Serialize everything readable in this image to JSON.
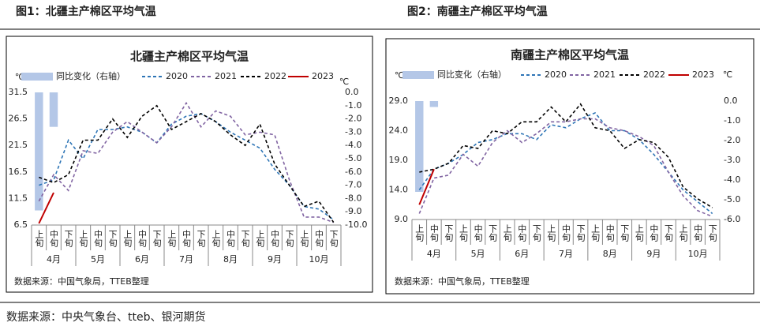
{
  "header": {
    "left": "图1：北疆主产棉区平均气温",
    "right": "图2：南疆主产棉区平均气温"
  },
  "footer": "数据来源：中央气象台、tteb、银河期货",
  "chart_data": [
    {
      "type": "line",
      "title": "北疆主产棉区平均气温",
      "source": "数据来源：中国气象局，TTEB整理",
      "y_unit": "℃",
      "y2_unit": "℃",
      "categories": [
        "上旬",
        "中旬",
        "下旬",
        "上旬",
        "中旬",
        "下旬",
        "上旬",
        "中旬",
        "下旬",
        "上旬",
        "中旬",
        "下旬",
        "上旬",
        "中旬",
        "下旬",
        "上旬",
        "中旬",
        "下旬",
        "上旬",
        "中旬",
        "下旬"
      ],
      "groups": [
        "4月",
        "5月",
        "6月",
        "7月",
        "8月",
        "9月",
        "10月"
      ],
      "ylim": [
        6.5,
        31.5
      ],
      "yticks": [
        6.5,
        11.5,
        16.5,
        21.5,
        26.5,
        31.5
      ],
      "y2lim": [
        -10,
        0
      ],
      "y2ticks": [
        {
          "value": -10,
          "label": "-10.0"
        },
        {
          "value": -9,
          "label": "-9.0"
        },
        {
          "value": -8,
          "label": "-8.0"
        },
        {
          "value": -7,
          "label": "-7.0"
        },
        {
          "value": -6,
          "label": "-6.0"
        },
        {
          "value": -5,
          "label": "-5.0"
        },
        {
          "value": -4,
          "label": "-4.0"
        },
        {
          "value": -3,
          "label": "-3.0"
        },
        {
          "value": -2,
          "label": "-2.0"
        },
        {
          "value": -1,
          "label": "-1.0"
        },
        {
          "value": 0,
          "label": "0.0"
        }
      ],
      "series": [
        {
          "name": "同比变化（右轴）",
          "type": "bar",
          "axis": "y2",
          "color": "#b4c7e7",
          "values": [
            -8.9,
            -2.6,
            null,
            null,
            null,
            null,
            null,
            null,
            null,
            null,
            null,
            null,
            null,
            null,
            null,
            null,
            null,
            null,
            null,
            null,
            null
          ]
        },
        {
          "name": "2020",
          "color": "#2e75b6",
          "values": [
            14,
            15,
            22.5,
            19,
            24.5,
            24.5,
            25,
            24,
            22,
            25.5,
            27,
            27.5,
            26,
            24,
            22.5,
            21,
            17,
            14,
            10,
            9.5,
            7.5
          ]
        },
        {
          "name": "2021",
          "color": "#8064a2",
          "values": [
            11,
            16,
            13,
            20.5,
            20,
            24,
            26,
            24,
            22,
            25,
            29.5,
            25,
            28,
            27,
            23.5,
            24,
            23.5,
            15,
            8,
            8,
            7
          ]
        },
        {
          "name": "2022",
          "color": "#000000",
          "values": [
            15.5,
            14.5,
            16,
            22.5,
            22.5,
            26.5,
            23,
            27,
            29,
            24.5,
            26,
            27.5,
            26,
            23.5,
            21.5,
            25.5,
            18,
            14,
            10,
            11,
            7
          ]
        },
        {
          "name": "2023",
          "color": "#c00000",
          "values": [
            6.8,
            12.6,
            null,
            null,
            null,
            null,
            null,
            null,
            null,
            null,
            null,
            null,
            null,
            null,
            null,
            null,
            null,
            null,
            null,
            null,
            null
          ]
        }
      ]
    },
    {
      "type": "line",
      "title": "南疆主产棉区平均气温",
      "source": "数据来源：中国气象局，TTEB整理",
      "y_unit": "℃",
      "y2_unit": "℃",
      "categories": [
        "上旬",
        "中旬",
        "下旬",
        "上旬",
        "中旬",
        "下旬",
        "上旬",
        "中旬",
        "下旬",
        "上旬",
        "中旬",
        "下旬",
        "上旬",
        "中旬",
        "下旬",
        "上旬",
        "中旬",
        "下旬",
        "上旬",
        "中旬",
        "下旬"
      ],
      "groups": [
        "4月",
        "5月",
        "6月",
        "7月",
        "8月",
        "9月",
        "10月"
      ],
      "ylim": [
        9,
        29
      ],
      "yticks": [
        {
          "value": 9,
          "label": "9.0"
        },
        {
          "value": 14,
          "label": "14.0"
        },
        {
          "value": 19,
          "label": "19.0"
        },
        {
          "value": 24,
          "label": "24.0"
        },
        {
          "value": 29,
          "label": "29.0"
        }
      ],
      "y2lim": [
        -6,
        0
      ],
      "y2ticks": [
        {
          "value": -6,
          "label": "-6.0"
        },
        {
          "value": -5,
          "label": "-5.0"
        },
        {
          "value": -4,
          "label": "-4.0"
        },
        {
          "value": -3,
          "label": "-3.0"
        },
        {
          "value": -2,
          "label": "-2.0"
        },
        {
          "value": -1,
          "label": "-1.0"
        },
        {
          "value": 0,
          "label": "0.0"
        }
      ],
      "series": [
        {
          "name": "同比变化（右轴）",
          "type": "bar",
          "axis": "y2",
          "color": "#b4c7e7",
          "values": [
            -4.6,
            -0.3,
            null,
            null,
            null,
            null,
            null,
            null,
            null,
            null,
            null,
            null,
            null,
            null,
            null,
            null,
            null,
            null,
            null,
            null,
            null
          ]
        },
        {
          "name": "2020",
          "color": "#2e75b6",
          "values": [
            14,
            17.5,
            18.5,
            20,
            22,
            22.5,
            23.5,
            23.5,
            22.5,
            25,
            24.5,
            26,
            27,
            24,
            24,
            22.5,
            20,
            17,
            14,
            12,
            10
          ]
        },
        {
          "name": "2021",
          "color": "#8064a2",
          "values": [
            10,
            16,
            16.5,
            20,
            18,
            22,
            24,
            22,
            23.5,
            25.5,
            25.5,
            26,
            26,
            24.5,
            24,
            23,
            21.5,
            17,
            13,
            10.5,
            9.5
          ]
        },
        {
          "name": "2022",
          "color": "#000000",
          "values": [
            17,
            17.5,
            18.5,
            21.5,
            21,
            24,
            23.5,
            25.5,
            25.5,
            28,
            25.5,
            28.5,
            24.5,
            24,
            21,
            22.5,
            22,
            19.5,
            14.5,
            12.5,
            11
          ]
        },
        {
          "name": "2023",
          "color": "#c00000",
          "values": [
            11.5,
            17.5,
            null,
            null,
            null,
            null,
            null,
            null,
            null,
            null,
            null,
            null,
            null,
            null,
            null,
            null,
            null,
            null,
            null,
            null,
            null
          ]
        }
      ]
    }
  ]
}
